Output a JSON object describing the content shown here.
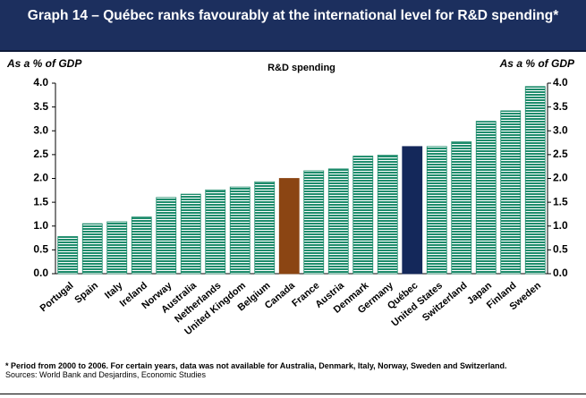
{
  "chart_data": {
    "type": "bar",
    "title": "Graph 14 – Québec ranks favourably at the international level for R&D spending*",
    "subtitle": "R&D spending",
    "y_label": "As a % of GDP",
    "y2_label": "As a % of GDP",
    "categories": [
      "Portugal",
      "Spain",
      "Italy",
      "Ireland",
      "Norway",
      "Australia",
      "Netherlands",
      "United Kingdom",
      "Belgium",
      "Canada",
      "France",
      "Austria",
      "Denmark",
      "Germany",
      "Québec",
      "United States",
      "Switzerland",
      "Japan",
      "Finland",
      "Sweden"
    ],
    "values": [
      0.78,
      1.05,
      1.09,
      1.19,
      1.6,
      1.67,
      1.76,
      1.82,
      1.93,
      2.0,
      2.16,
      2.2,
      2.47,
      2.49,
      2.67,
      2.67,
      2.77,
      3.2,
      3.42,
      3.93
    ],
    "hatch_color": "#1e8c6c",
    "colors": [
      "#1e8c6c",
      "#1e8c6c",
      "#1e8c6c",
      "#1e8c6c",
      "#1e8c6c",
      "#1e8c6c",
      "#1e8c6c",
      "#1e8c6c",
      "#1e8c6c",
      "#8b4513",
      "#1e8c6c",
      "#1e8c6c",
      "#1e8c6c",
      "#1e8c6c",
      "#14285a",
      "#1e8c6c",
      "#1e8c6c",
      "#1e8c6c",
      "#1e8c6c",
      "#1e8c6c"
    ],
    "ylim": [
      0,
      4
    ],
    "yticks": [
      {
        "value": 0,
        "label": "0.0"
      },
      {
        "value": 0.5,
        "label": "0.5"
      },
      {
        "value": 1,
        "label": "1.0"
      },
      {
        "value": 1.5,
        "label": "1.5"
      },
      {
        "value": 2,
        "label": "2.0"
      },
      {
        "value": 2.5,
        "label": "2.5"
      },
      {
        "value": 3,
        "label": "3.0"
      },
      {
        "value": 3.5,
        "label": "3.5"
      },
      {
        "value": 4,
        "label": "4.0"
      }
    ],
    "y2lim": [
      0,
      4
    ],
    "y2ticks": [
      {
        "value": 0,
        "label": "0.0"
      },
      {
        "value": 0.5,
        "label": "0.5"
      },
      {
        "value": 1,
        "label": "1.0"
      },
      {
        "value": 1.5,
        "label": "1.5"
      },
      {
        "value": 2,
        "label": "2.0"
      },
      {
        "value": 2.5,
        "label": "2.5"
      },
      {
        "value": 3,
        "label": "3.0"
      },
      {
        "value": 3.5,
        "label": "3.5"
      },
      {
        "value": 4,
        "label": "4.0"
      }
    ],
    "grid": false,
    "footnote": "* Period from 2000 to 2006. For certain years, data was not available for Australia, Denmark, Italy, Norway, Sweden and Switzerland.",
    "source": "Sources: World Bank and Desjardins, Economic Studies"
  }
}
